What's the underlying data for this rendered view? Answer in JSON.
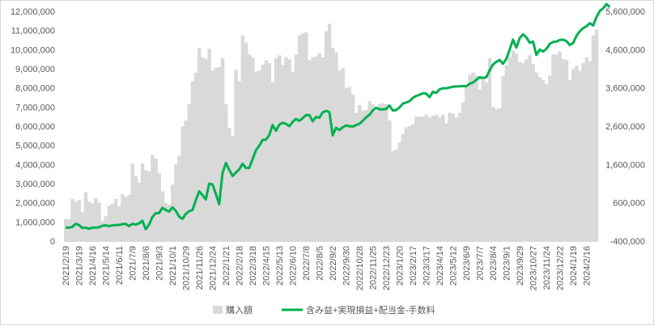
{
  "chart_data": {
    "type": "bar",
    "legend_position": "bottom",
    "grid": false,
    "left_axis": {
      "ylim": [
        0,
        12000000
      ],
      "ticks": [
        "0",
        "1,000,000",
        "2,000,000",
        "3,000,000",
        "4,000,000",
        "5,000,000",
        "6,000,000",
        "7,000,000",
        "8,000,000",
        "9,000,000",
        "10,000,000",
        "11,000,000",
        "12,000,000"
      ]
    },
    "right_axis": {
      "ylim": [
        -400000,
        5600000
      ],
      "ticks": [
        "-400,000",
        "600,000",
        "1,600,000",
        "2,600,000",
        "3,600,000",
        "4,600,000",
        "5,600,000"
      ]
    },
    "x_tick_labels": [
      "2021/2/19",
      "2021/3/19",
      "2021/4/16",
      "2021/5/14",
      "2021/6/11",
      "2021/7/9",
      "2021/8/6",
      "2021/9/3",
      "2021/10/1",
      "2021/10/29",
      "2021/11/26",
      "2021/12/24",
      "2022/1/21",
      "2022/2/18",
      "2022/3/18",
      "2022/4/15",
      "2022/5/13",
      "2022/6/10",
      "2022/7/8",
      "2022/8/5",
      "2022/9/2",
      "2022/9/30",
      "2022/10/28",
      "2022/11/25",
      "2022/12/23",
      "2023/1/20",
      "2023/2/17",
      "2023/3/17",
      "2023/4/14",
      "2023/5/12",
      "2023/6/9",
      "2023/7/7",
      "2023/8/4",
      "2023/9/1",
      "2023/9/29",
      "2023/10/27",
      "2023/11/24",
      "2023/12/22",
      "2024/1/19",
      "2024/2/16"
    ],
    "series": [
      {
        "name": "購入額",
        "type": "bar",
        "axis": "left",
        "color": "#d9d9d9",
        "values": [
          1150000,
          1150000,
          2200000,
          2050000,
          2150000,
          1500000,
          2550000,
          2050000,
          1950000,
          2250000,
          2000000,
          1050000,
          1300000,
          1850000,
          1950000,
          2200000,
          1800000,
          2450000,
          2300000,
          2400000,
          4050000,
          3400000,
          3050000,
          4050000,
          3700000,
          3650000,
          4500000,
          4300000,
          3550000,
          2600000,
          2000000,
          1900000,
          2950000,
          4000000,
          4450000,
          6000000,
          6300000,
          7150000,
          8350000,
          8800000,
          10100000,
          9600000,
          9500000,
          10050000,
          8900000,
          9050000,
          9100000,
          9550000,
          7150000,
          5900000,
          5500000,
          8950000,
          8350000,
          10750000,
          10350000,
          9750000,
          9600000,
          8850000,
          8900000,
          9200000,
          9450000,
          9300000,
          8300000,
          9550000,
          9700000,
          9200000,
          9600000,
          9500000,
          8850000,
          9750000,
          10750000,
          10850000,
          10900000,
          9450000,
          9600000,
          9650000,
          9800000,
          9600000,
          10950000,
          11350000,
          10100000,
          9850000,
          8900000,
          9050000,
          8000000,
          8050000,
          7650000,
          6700000,
          7100000,
          6800000,
          6850000,
          7300000,
          7150000,
          6800000,
          7150000,
          7200000,
          7150000,
          6300000,
          4700000,
          4800000,
          5150000,
          5600000,
          5950000,
          6000000,
          6100000,
          6500000,
          6500000,
          6500000,
          6600000,
          6450000,
          6550000,
          6600000,
          6450000,
          6600000,
          6150000,
          6700000,
          6650000,
          6450000,
          6700000,
          7250000,
          8000000,
          8700000,
          8800000,
          8650000,
          7900000,
          8450000,
          8300000,
          9550000,
          7000000,
          6900000,
          6950000,
          8600000,
          9200000,
          9600000,
          9950000,
          9800000,
          9350000,
          9300000,
          9500000,
          9700000,
          9250000,
          8800000,
          8550000,
          8400000,
          8200000,
          8650000,
          9750000,
          9750000,
          9900000,
          9500000,
          9450000,
          8400000,
          9000000,
          9150000,
          8900000,
          9300000,
          9600000,
          9400000,
          10750000,
          11050000
        ]
      },
      {
        "name": "含み益+実現損益+配当金-手数料",
        "type": "line",
        "axis": "right",
        "color": "#00b050",
        "values": [
          -50000,
          -50000,
          -30000,
          50000,
          20000,
          -60000,
          -50000,
          -80000,
          -50000,
          -50000,
          -40000,
          0,
          10000,
          -10000,
          10000,
          20000,
          20000,
          40000,
          50000,
          -10000,
          50000,
          30000,
          60000,
          130000,
          -90000,
          30000,
          230000,
          330000,
          330000,
          470000,
          410000,
          370000,
          480000,
          390000,
          240000,
          180000,
          310000,
          380000,
          410000,
          670000,
          900000,
          800000,
          690000,
          1100000,
          1080000,
          830000,
          560000,
          1380000,
          1640000,
          1460000,
          1300000,
          1390000,
          1470000,
          1620000,
          1510000,
          1510000,
          1740000,
          1970000,
          2090000,
          2240000,
          2250000,
          2370000,
          2630000,
          2480000,
          2640000,
          2690000,
          2660000,
          2600000,
          2710000,
          2790000,
          2740000,
          2810000,
          2890000,
          2890000,
          2730000,
          2840000,
          2820000,
          2960000,
          3000000,
          2970000,
          2360000,
          2560000,
          2500000,
          2570000,
          2620000,
          2600000,
          2590000,
          2630000,
          2660000,
          2740000,
          2830000,
          2900000,
          3010000,
          3080000,
          3040000,
          3040000,
          3050000,
          3140000,
          3010000,
          3020000,
          3090000,
          3190000,
          3220000,
          3250000,
          3340000,
          3390000,
          3420000,
          3460000,
          3450000,
          3360000,
          3500000,
          3470000,
          3560000,
          3590000,
          3590000,
          3610000,
          3630000,
          3640000,
          3640000,
          3650000,
          3640000,
          3710000,
          3740000,
          3810000,
          3880000,
          3860000,
          3880000,
          4060000,
          4210000,
          4280000,
          4330000,
          4230000,
          4360000,
          4600000,
          4860000,
          4650000,
          4900000,
          5000000,
          4920000,
          4780000,
          4810000,
          4460000,
          4600000,
          4550000,
          4620000,
          4750000,
          4800000,
          4810000,
          4850000,
          4860000,
          4820000,
          4720000,
          4770000,
          4960000,
          5080000,
          5160000,
          5210000,
          5290000,
          5230000,
          5450000,
          5610000,
          5680000,
          5790000,
          5710000
        ]
      }
    ]
  }
}
